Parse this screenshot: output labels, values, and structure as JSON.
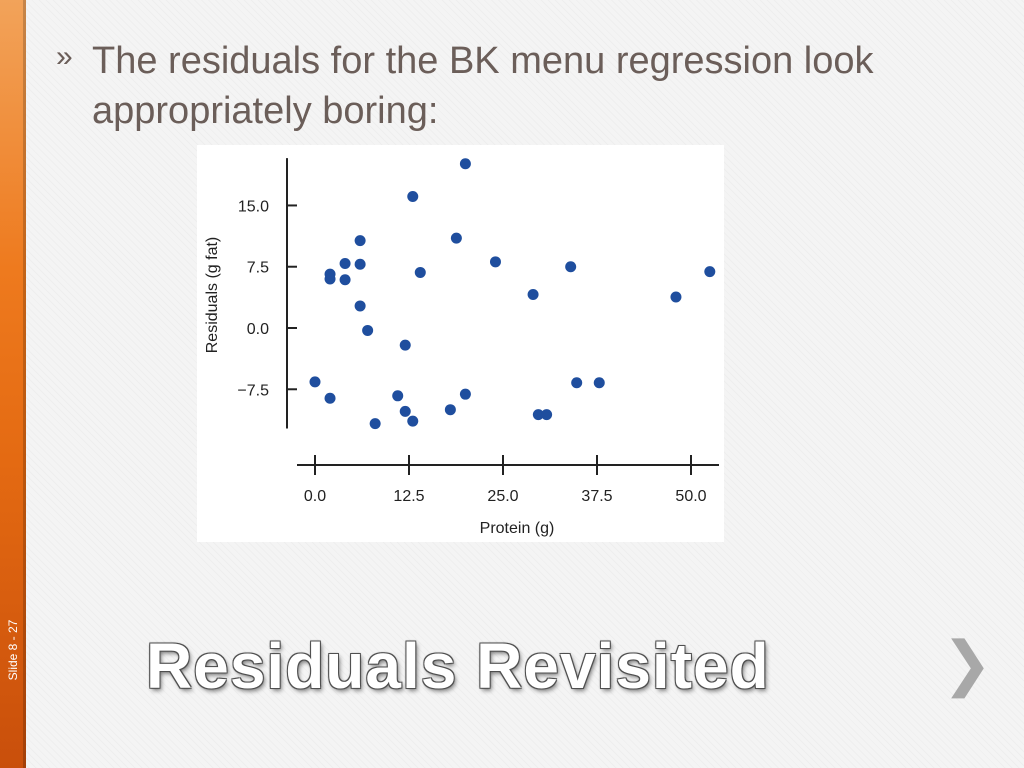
{
  "slide": {
    "number_label": "Slide 8 - 27",
    "bullet_mark": "»",
    "bullet_text": "The residuals for the BK menu regression look appropriately boring:",
    "title": "Residuals Revisited",
    "next_icon": "chevron-right-icon",
    "next_glyph": "❯"
  },
  "colors": {
    "accent": "#ee7a1e",
    "text": "#6b5e59",
    "point": "#1f4e9e"
  },
  "chart_data": {
    "type": "scatter",
    "title": "",
    "xlabel": "Protein (g)",
    "ylabel": "Residuals (g fat)",
    "xlim": [
      0,
      54
    ],
    "ylim": [
      -12.3,
      20.8
    ],
    "x_ticks": [
      0.0,
      12.5,
      25.0,
      37.5,
      50.0
    ],
    "x_tick_labels": [
      "0.0",
      "12.5",
      "25.0",
      "37.5",
      "50.0"
    ],
    "y_ticks": [
      15.0,
      7.5,
      0.0,
      -7.5
    ],
    "y_tick_labels": [
      "15.0",
      "7.5",
      "0.0",
      "−7.5"
    ],
    "grid": false,
    "legend": "none",
    "series": [
      {
        "points": [
          [
            20,
            20.1
          ],
          [
            13,
            16.1
          ],
          [
            6,
            10.7
          ],
          [
            18.8,
            11.0
          ],
          [
            4,
            7.9
          ],
          [
            6,
            7.8
          ],
          [
            2,
            6.6
          ],
          [
            2,
            6.0
          ],
          [
            4,
            5.9
          ],
          [
            14,
            6.8
          ],
          [
            24,
            8.1
          ],
          [
            34,
            7.5
          ],
          [
            29,
            4.1
          ],
          [
            52.5,
            6.9
          ],
          [
            48,
            3.8
          ],
          [
            6,
            2.7
          ],
          [
            7,
            -0.3
          ],
          [
            12,
            -2.1
          ],
          [
            0,
            -6.6
          ],
          [
            2,
            -8.6
          ],
          [
            11,
            -8.3
          ],
          [
            12,
            -10.2
          ],
          [
            13,
            -11.4
          ],
          [
            8,
            -11.7
          ],
          [
            18,
            -10.0
          ],
          [
            20,
            -8.1
          ],
          [
            29.7,
            -10.6
          ],
          [
            30.8,
            -10.6
          ],
          [
            34.8,
            -6.7
          ],
          [
            37.8,
            -6.7
          ]
        ]
      }
    ]
  }
}
